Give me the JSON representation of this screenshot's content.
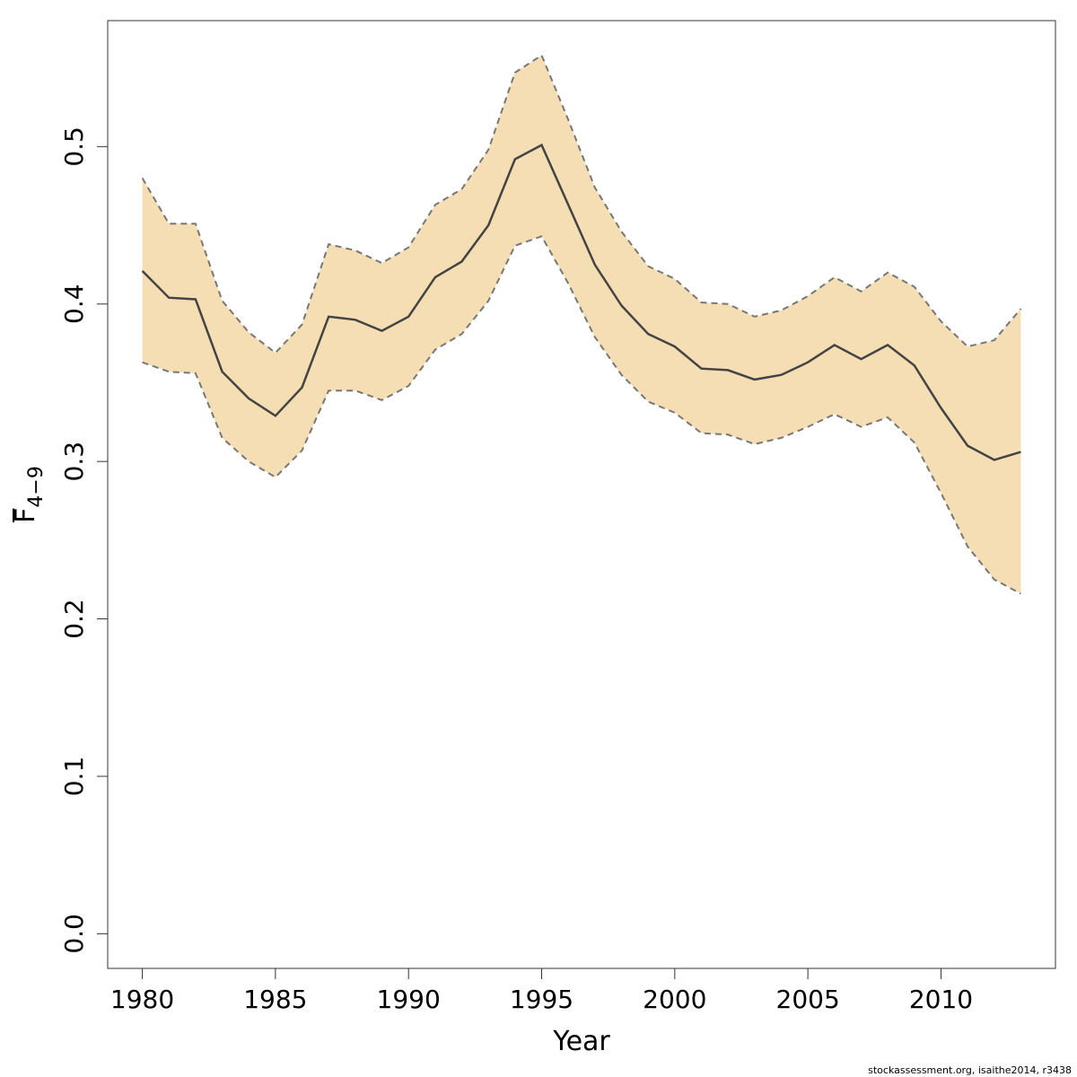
{
  "chart_data": {
    "type": "line",
    "xlabel": "Year",
    "ylabel": "F",
    "ylabel_subscript": "4−9",
    "xlim": [
      1978.7,
      2014.3
    ],
    "ylim": [
      -0.022,
      0.58
    ],
    "xticks": [
      1980,
      1985,
      1990,
      1995,
      2000,
      2005,
      2010
    ],
    "yticks": [
      0.0,
      0.1,
      0.2,
      0.3,
      0.4,
      0.5
    ],
    "ytick_labels": [
      "0.0",
      "0.1",
      "0.2",
      "0.3",
      "0.4",
      "0.5"
    ],
    "band_color": "#F5DEB3",
    "line_color": "#444444",
    "bound_color": "#777777",
    "x": [
      1980,
      1981,
      1982,
      1983,
      1984,
      1985,
      1986,
      1987,
      1988,
      1989,
      1990,
      1991,
      1992,
      1993,
      1994,
      1995,
      1996,
      1997,
      1998,
      1999,
      2000,
      2001,
      2002,
      2003,
      2004,
      2005,
      2006,
      2007,
      2008,
      2009,
      2010,
      2011,
      2012,
      2013
    ],
    "series": [
      {
        "values": [
          0.421,
          0.404,
          0.403,
          0.357,
          0.34,
          0.329,
          0.347,
          0.392,
          0.39,
          0.383,
          0.392,
          0.417,
          0.427,
          0.45,
          0.492,
          0.501,
          0.463,
          0.425,
          0.399,
          0.381,
          0.373,
          0.359,
          0.358,
          0.352,
          0.355,
          0.363,
          0.374,
          0.365,
          0.374,
          0.361,
          0.334,
          0.31,
          0.301,
          0.306
        ]
      },
      {
        "values": [
          0.48,
          0.451,
          0.451,
          0.402,
          0.382,
          0.369,
          0.387,
          0.438,
          0.434,
          0.426,
          0.436,
          0.463,
          0.473,
          0.498,
          0.547,
          0.558,
          0.517,
          0.474,
          0.446,
          0.424,
          0.416,
          0.401,
          0.4,
          0.392,
          0.396,
          0.405,
          0.417,
          0.408,
          0.42,
          0.411,
          0.389,
          0.373,
          0.377,
          0.397
        ]
      },
      {
        "values": [
          0.363,
          0.357,
          0.356,
          0.315,
          0.3,
          0.29,
          0.307,
          0.345,
          0.345,
          0.339,
          0.348,
          0.371,
          0.381,
          0.402,
          0.437,
          0.443,
          0.413,
          0.379,
          0.355,
          0.338,
          0.331,
          0.318,
          0.317,
          0.311,
          0.315,
          0.322,
          0.33,
          0.322,
          0.328,
          0.312,
          0.28,
          0.246,
          0.225,
          0.216
        ]
      }
    ]
  },
  "footer": {
    "credit": "stockassessment.org, isaithe2014, r3438"
  }
}
